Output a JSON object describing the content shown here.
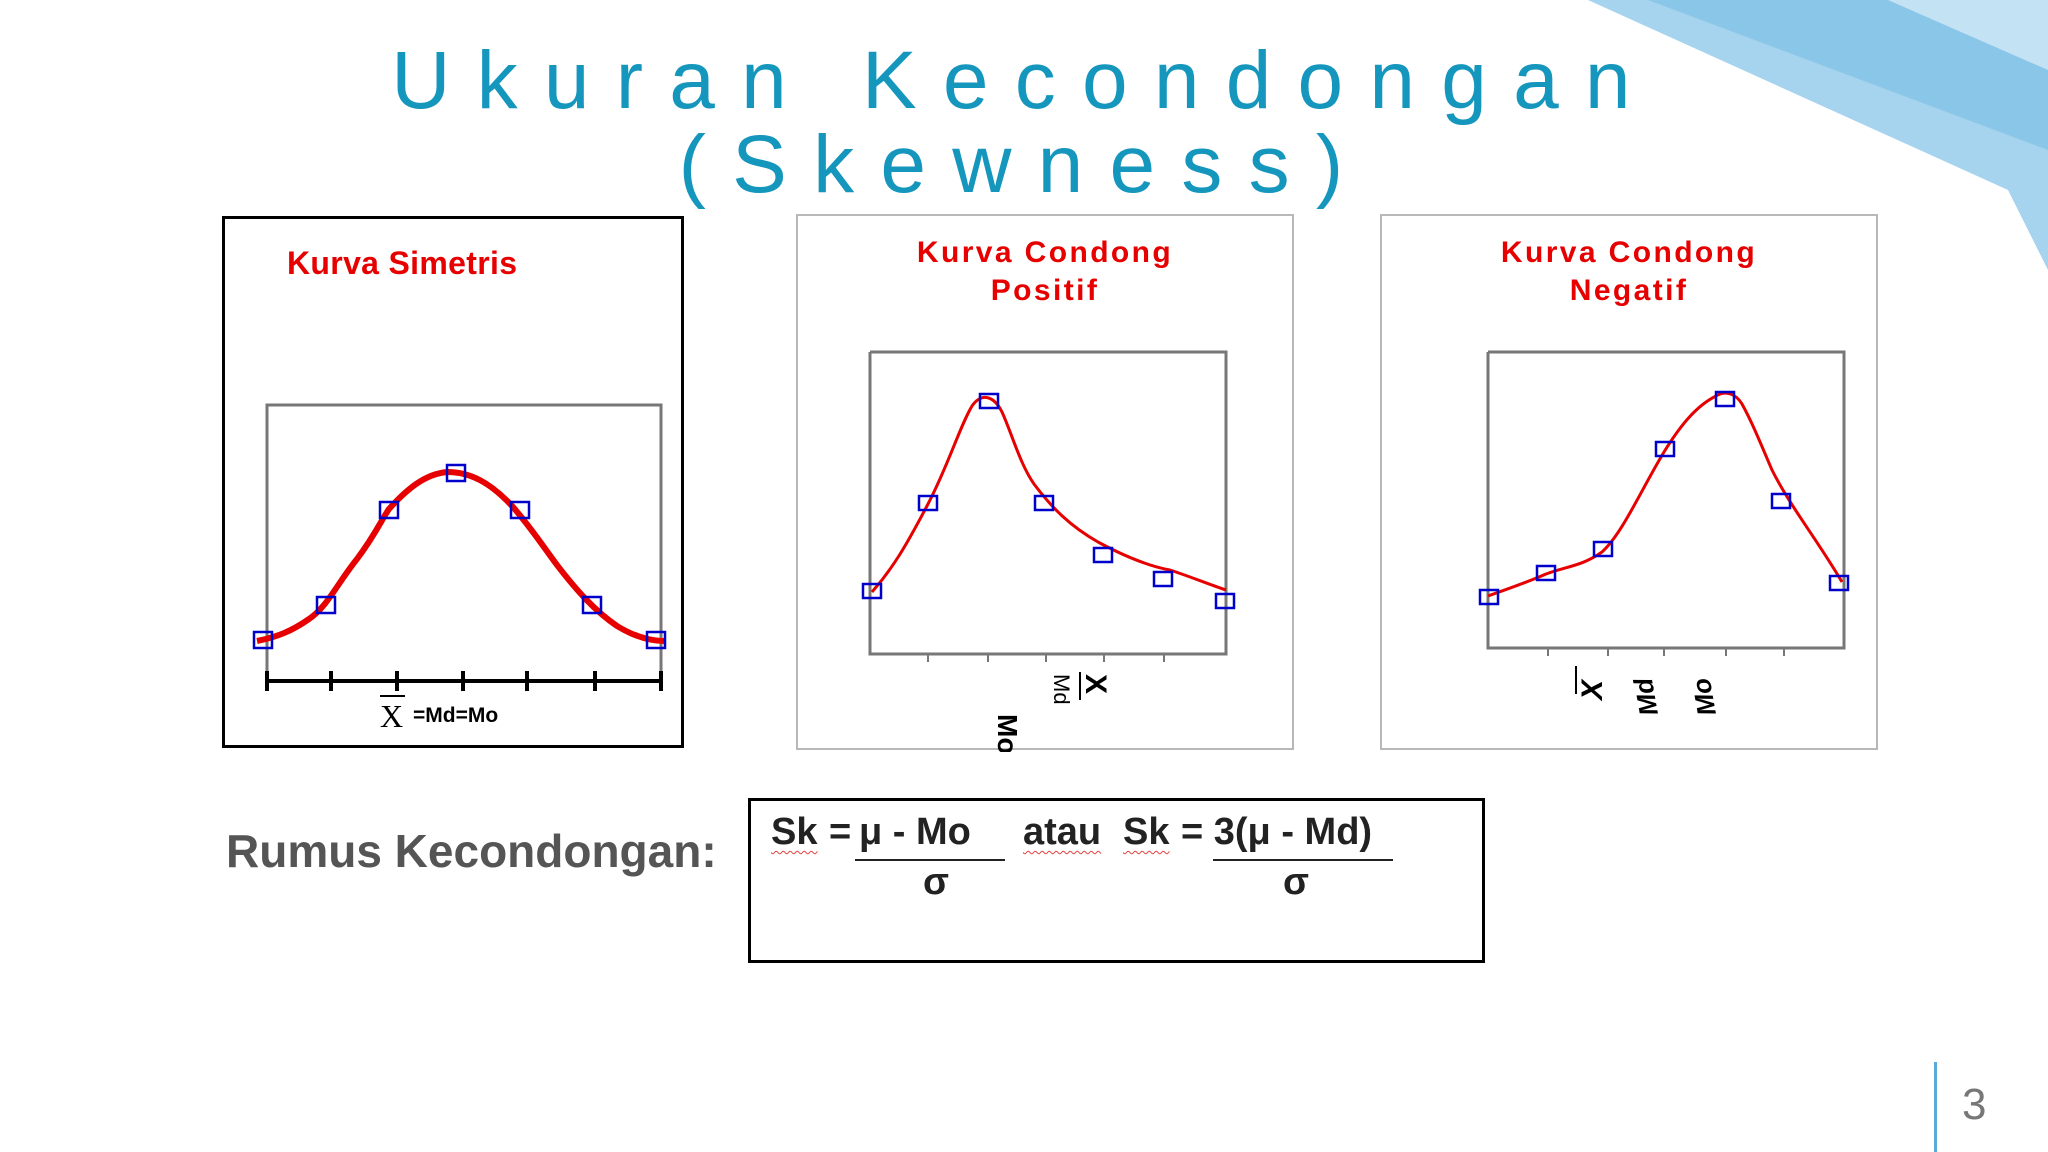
{
  "title": {
    "line1": "Ukuran Kecondongan",
    "line2": "(Skewness)"
  },
  "panels": {
    "symmetric": {
      "title": "Kurva Simetris",
      "x_label_symbol": "X",
      "x_label_rest": "=Md=Mo"
    },
    "positive": {
      "title_line1": "Kurva Condong",
      "title_line2": "Positif",
      "labels": [
        "Mo",
        "Md",
        "X"
      ]
    },
    "negative": {
      "title_line1": "Kurva Condong",
      "title_line2": "Negatif",
      "labels": [
        "X",
        "Md",
        "Mo"
      ]
    }
  },
  "formula": {
    "label": "Rumus Kecondongan:",
    "sk1": "Sk",
    "eq1": "=",
    "num1": "μ -  Mo",
    "den1": "σ",
    "atau": "atau",
    "sk2": "Sk",
    "eq2": "= 3(μ -  Md)",
    "den2": "σ"
  },
  "page_number": "3",
  "colors": {
    "title": "#1596bd",
    "curve": "#e60000",
    "marker": "#0000cc",
    "accent_deco": "#8ec9ea"
  }
}
